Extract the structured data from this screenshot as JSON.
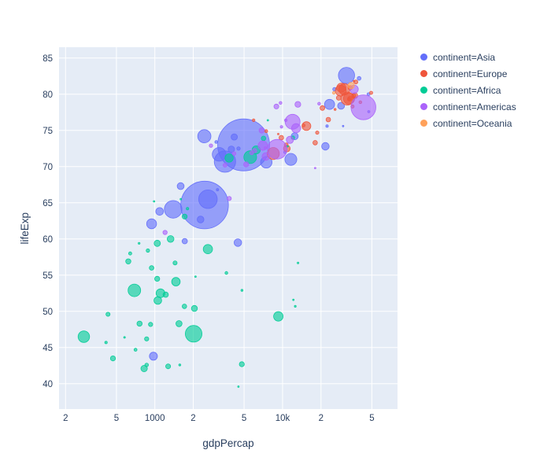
{
  "figure": {
    "plot_bgcolor": "#E5ECF6",
    "grid_color": "#FFFFFF",
    "text_color": "#2a3f5f"
  },
  "chart_data": {
    "type": "scatter",
    "mode": "bubble",
    "title": "",
    "xlabel": "gdpPercap",
    "ylabel": "lifeExp",
    "x_scale": "log",
    "x_range_log10": [
      2.25,
      4.9
    ],
    "y_range": [
      36.5,
      86.5
    ],
    "grid": true,
    "legend_position": "right",
    "x_ticks": [
      {
        "value": 200,
        "label": "2"
      },
      {
        "value": 500,
        "label": "5"
      },
      {
        "value": 1000,
        "label": "1000"
      },
      {
        "value": 2000,
        "label": "2"
      },
      {
        "value": 5000,
        "label": "5"
      },
      {
        "value": 10000,
        "label": "10k"
      },
      {
        "value": 20000,
        "label": "2"
      },
      {
        "value": 50000,
        "label": "5"
      }
    ],
    "y_ticks": [
      40,
      45,
      50,
      55,
      60,
      65,
      70,
      75,
      80,
      85
    ],
    "legend": [
      {
        "name": "Asia",
        "label": "continent=Asia",
        "color": "#636EFA"
      },
      {
        "name": "Europe",
        "label": "continent=Europe",
        "color": "#EF553B"
      },
      {
        "name": "Africa",
        "label": "continent=Africa",
        "color": "#00CC96"
      },
      {
        "name": "Americas",
        "label": "continent=Americas",
        "color": "#AB63FA"
      },
      {
        "name": "Oceania",
        "label": "continent=Oceania",
        "color": "#FFA15A"
      }
    ],
    "size_note": "points are [gdpPercap, lifeExp, bubble_radius_px]; bubble area encodes a third variable, radii estimated from the image",
    "series": [
      {
        "name": "Asia",
        "color": "#636EFA",
        "points": [
          [
            975,
            43.8,
            5.1
          ],
          [
            29796,
            75.6,
            0.8
          ],
          [
            1391,
            64.1,
            11.2
          ],
          [
            1714,
            59.7,
            3.4
          ],
          [
            4959,
            73.0,
            33.0
          ],
          [
            39725,
            82.2,
            2.4
          ],
          [
            2452,
            64.7,
            30.3
          ],
          [
            3541,
            70.7,
            13.6
          ],
          [
            11606,
            71.0,
            7.6
          ],
          [
            4471,
            59.5,
            4.8
          ],
          [
            25523,
            80.7,
            2.3
          ],
          [
            31656,
            82.6,
            10.3
          ],
          [
            4519,
            72.5,
            2.2
          ],
          [
            1593,
            67.3,
            4.4
          ],
          [
            23348,
            78.6,
            6.4
          ],
          [
            47307,
            77.6,
            1.4
          ],
          [
            10461,
            72.0,
            1.8
          ],
          [
            12452,
            74.2,
            4.5
          ],
          [
            3096,
            66.8,
            1.5
          ],
          [
            944,
            62.1,
            6.3
          ],
          [
            1091,
            63.8,
            4.9
          ],
          [
            22316,
            75.6,
            1.6
          ],
          [
            2606,
            65.5,
            11.8
          ],
          [
            3190,
            71.7,
            8.7
          ],
          [
            21655,
            72.8,
            4.8
          ],
          [
            47143,
            80.0,
            1.9
          ],
          [
            3970,
            72.4,
            4.1
          ],
          [
            4185,
            74.1,
            4.0
          ],
          [
            28718,
            78.4,
            4.4
          ],
          [
            7458,
            70.6,
            7.3
          ],
          [
            2442,
            74.2,
            8.4
          ],
          [
            3025,
            73.4,
            1.8
          ],
          [
            2281,
            62.7,
            4.3
          ]
        ]
      },
      {
        "name": "Europe",
        "color": "#EF553B",
        "points": [
          [
            5937,
            76.4,
            1.7
          ],
          [
            36126,
            79.8,
            2.6
          ],
          [
            33693,
            79.4,
            2.9
          ],
          [
            7446,
            74.9,
            1.9
          ],
          [
            10681,
            73.0,
            2.5
          ],
          [
            14619,
            75.7,
            1.9
          ],
          [
            22833,
            76.5,
            2.9
          ],
          [
            35278,
            78.3,
            2.1
          ],
          [
            33207,
            79.3,
            2.1
          ],
          [
            30470,
            80.7,
            7.1
          ],
          [
            32170,
            79.4,
            8.3
          ],
          [
            27538,
            79.5,
            3.0
          ],
          [
            18009,
            73.3,
            2.9
          ],
          [
            36181,
            81.8,
            0.5
          ],
          [
            40676,
            78.9,
            1.8
          ],
          [
            28570,
            80.5,
            6.9
          ],
          [
            9254,
            74.5,
            0.8
          ],
          [
            36798,
            79.8,
            3.7
          ],
          [
            49357,
            80.2,
            2.0
          ],
          [
            15390,
            75.6,
            5.6
          ],
          [
            20510,
            78.1,
            3.0
          ],
          [
            10808,
            72.5,
            4.3
          ],
          [
            9787,
            74.0,
            2.9
          ],
          [
            18678,
            74.7,
            2.1
          ],
          [
            25768,
            77.9,
            1.3
          ],
          [
            28821,
            80.9,
            5.8
          ],
          [
            33860,
            80.9,
            2.7
          ],
          [
            37506,
            81.7,
            2.5
          ],
          [
            8458,
            71.8,
            7.7
          ],
          [
            33203,
            79.4,
            7.1
          ]
        ]
      },
      {
        "name": "Africa",
        "color": "#00CC96",
        "points": [
          [
            6223,
            72.3,
            5.2
          ],
          [
            4797,
            42.7,
            3.2
          ],
          [
            1441,
            56.7,
            2.6
          ],
          [
            12570,
            50.7,
            1.2
          ],
          [
            1217,
            52.3,
            3.4
          ],
          [
            430,
            49.6,
            2.6
          ],
          [
            2042,
            50.4,
            3.8
          ],
          [
            706,
            44.7,
            1.9
          ],
          [
            1704,
            50.7,
            2.9
          ],
          [
            986,
            65.2,
            0.8
          ],
          [
            278,
            46.5,
            7.3
          ],
          [
            3633,
            55.3,
            1.8
          ],
          [
            1545,
            48.3,
            3.9
          ],
          [
            2082,
            54.8,
            0.6
          ],
          [
            5581,
            71.3,
            8.1
          ],
          [
            12154,
            51.6,
            0.7
          ],
          [
            641,
            58.0,
            2.0
          ],
          [
            691,
            52.9,
            8.0
          ],
          [
            13206,
            56.7,
            1.1
          ],
          [
            753,
            59.4,
            1.2
          ],
          [
            1328,
            60.0,
            4.3
          ],
          [
            943,
            56.0,
            2.9
          ],
          [
            579,
            46.4,
            1.1
          ],
          [
            1463,
            54.1,
            5.4
          ],
          [
            1569,
            42.6,
            1.3
          ],
          [
            415,
            45.7,
            1.6
          ],
          [
            12057,
            74.0,
            2.2
          ],
          [
            1045,
            59.4,
            4.0
          ],
          [
            759,
            48.3,
            3.3
          ],
          [
            1043,
            54.5,
            3.2
          ],
          [
            1803,
            64.2,
            1.6
          ],
          [
            10957,
            72.8,
            1.0
          ],
          [
            3820,
            71.2,
            5.3
          ],
          [
            824,
            42.1,
            4.1
          ],
          [
            4811,
            52.9,
            1.3
          ],
          [
            620,
            56.9,
            3.3
          ],
          [
            2014,
            46.9,
            10.6
          ],
          [
            7670,
            76.4,
            0.8
          ],
          [
            863,
            46.2,
            2.7
          ],
          [
            1598,
            65.5,
            0.4
          ],
          [
            1712,
            63.1,
            3.2
          ],
          [
            863,
            42.6,
            2.3
          ],
          [
            926,
            48.2,
            2.7
          ],
          [
            9270,
            49.3,
            6.0
          ],
          [
            2602,
            58.6,
            5.9
          ],
          [
            4513,
            39.6,
            1.0
          ],
          [
            1107,
            52.5,
            5.6
          ],
          [
            883,
            58.4,
            2.2
          ],
          [
            7093,
            73.9,
            2.9
          ],
          [
            1056,
            51.5,
            4.9
          ],
          [
            1271,
            42.4,
            3.1
          ],
          [
            470,
            43.5,
            3.2
          ]
        ]
      },
      {
        "name": "Americas",
        "color": "#AB63FA",
        "points": [
          [
            12779,
            75.3,
            5.8
          ],
          [
            3822,
            65.6,
            2.7
          ],
          [
            9066,
            72.4,
            12.5
          ],
          [
            36319,
            80.7,
            5.3
          ],
          [
            13172,
            78.6,
            3.7
          ],
          [
            7007,
            72.9,
            6.0
          ],
          [
            9645,
            78.8,
            1.8
          ],
          [
            8948,
            78.3,
            3.1
          ],
          [
            6025,
            72.2,
            2.8
          ],
          [
            6873,
            75.0,
            3.4
          ],
          [
            5728,
            71.9,
            2.4
          ],
          [
            5186,
            70.3,
            3.2
          ],
          [
            1202,
            60.9,
            2.7
          ],
          [
            3548,
            70.2,
            2.5
          ],
          [
            7321,
            72.6,
            1.5
          ],
          [
            11978,
            76.2,
            9.5
          ],
          [
            2749,
            72.9,
            2.2
          ],
          [
            9809,
            75.5,
            1.6
          ],
          [
            4173,
            71.8,
            2.3
          ],
          [
            7409,
            71.4,
            4.9
          ],
          [
            19329,
            78.7,
            1.8
          ],
          [
            18009,
            69.8,
            0.9
          ],
          [
            42952,
            78.2,
            15.8
          ],
          [
            10611,
            76.4,
            1.7
          ],
          [
            11416,
            73.7,
            4.6
          ]
        ]
      },
      {
        "name": "Oceania",
        "color": "#FFA15A",
        "points": [
          [
            34435,
            81.2,
            4.1
          ],
          [
            25185,
            80.2,
            1.8
          ]
        ]
      }
    ]
  }
}
